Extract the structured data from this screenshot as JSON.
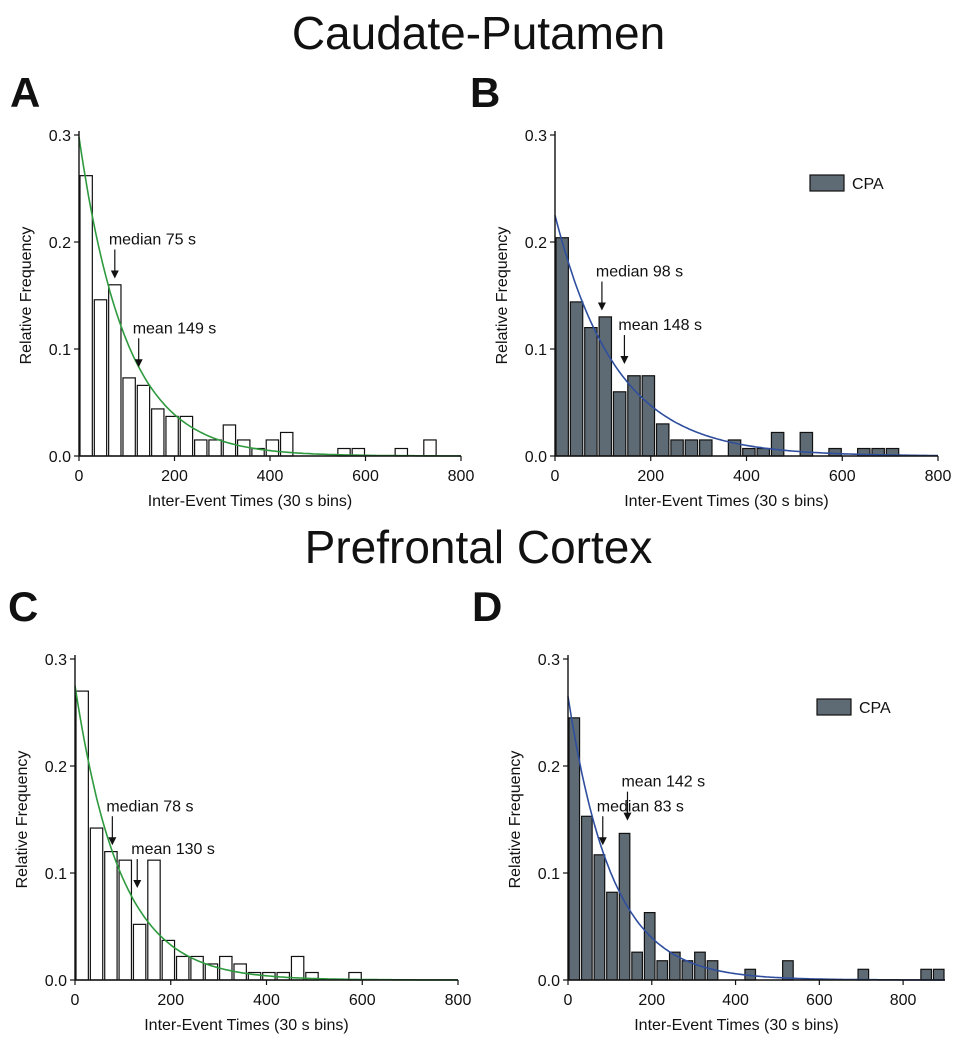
{
  "titles": {
    "top": "Caudate-Putamen",
    "bottom": "Prefrontal Cortex"
  },
  "colors": {
    "bar_filled": "#5e6b74",
    "bar_open": "#ffffff",
    "bar_stroke": "#111111",
    "fit_green": "#2e9a3e",
    "fit_blue": "#2f4f9e"
  },
  "chart_data": [
    {
      "panel": "A",
      "type": "bar",
      "bin_width": 30,
      "x": [
        15,
        45,
        75,
        105,
        135,
        165,
        195,
        225,
        255,
        285,
        315,
        345,
        375,
        405,
        435,
        465,
        495,
        525,
        555,
        585,
        615,
        645,
        675,
        705,
        735
      ],
      "values": [
        0.262,
        0.146,
        0.16,
        0.073,
        0.066,
        0.044,
        0.037,
        0.037,
        0.015,
        0.015,
        0.029,
        0.015,
        0.007,
        0.015,
        0.022,
        0,
        0,
        0,
        0.007,
        0.007,
        0,
        0,
        0.007,
        0,
        0.015
      ],
      "fill": "open",
      "fit": {
        "type": "exponential",
        "y0": 0.298,
        "tau": 98,
        "color": "green"
      },
      "xlabel": "Inter-Event Times (30 s bins)",
      "ylabel": "Relative Frequency",
      "xlim": [
        0,
        800
      ],
      "ylim": [
        0,
        0.3
      ],
      "xticks": [
        0,
        200,
        400,
        600,
        800
      ],
      "yticks": [
        0.0,
        0.1,
        0.2,
        0.3
      ],
      "xtick_labels": [
        "0",
        "200",
        "400",
        "600",
        "800"
      ],
      "ytick_labels": [
        "0.0",
        "0.1",
        "0.2",
        "0.3"
      ],
      "annotations": [
        {
          "text": "median 75 s",
          "x": 75,
          "y": 0.165
        },
        {
          "text": "mean 149 s",
          "x": 125,
          "y": 0.082
        }
      ],
      "legend": null
    },
    {
      "panel": "B",
      "type": "bar",
      "bin_width": 30,
      "x": [
        15,
        45,
        75,
        105,
        135,
        165,
        195,
        225,
        255,
        285,
        315,
        345,
        375,
        405,
        435,
        465,
        495,
        525,
        555,
        585,
        615,
        645,
        675,
        705
      ],
      "values": [
        0.204,
        0.144,
        0.12,
        0.13,
        0.06,
        0.075,
        0.075,
        0.03,
        0.015,
        0.015,
        0.015,
        0,
        0.015,
        0.007,
        0.007,
        0.022,
        0,
        0.022,
        0,
        0.007,
        0,
        0.007,
        0.007,
        0.007
      ],
      "fill": "filled",
      "fit": {
        "type": "exponential",
        "y0": 0.225,
        "tau": 128,
        "color": "blue"
      },
      "xlabel": "Inter-Event Times (30 s bins)",
      "ylabel": "Relative Frequency",
      "xlim": [
        0,
        800
      ],
      "ylim": [
        0,
        0.3
      ],
      "xticks": [
        0,
        200,
        400,
        600,
        800
      ],
      "yticks": [
        0.0,
        0.1,
        0.2,
        0.3
      ],
      "xtick_labels": [
        "0",
        "200",
        "400",
        "600",
        "800"
      ],
      "ytick_labels": [
        "0.0",
        "0.1",
        "0.2",
        "0.3"
      ],
      "annotations": [
        {
          "text": "median 98 s",
          "x": 98,
          "y": 0.135
        },
        {
          "text": "mean 148 s",
          "x": 145,
          "y": 0.085
        }
      ],
      "legend": {
        "label": "CPA",
        "position": "top-right"
      }
    },
    {
      "panel": "C",
      "type": "bar",
      "bin_width": 30,
      "x": [
        15,
        45,
        75,
        105,
        135,
        165,
        195,
        225,
        255,
        285,
        315,
        345,
        375,
        405,
        435,
        465,
        495,
        525,
        555,
        585
      ],
      "values": [
        0.27,
        0.142,
        0.12,
        0.112,
        0.052,
        0.112,
        0.037,
        0.022,
        0.022,
        0.015,
        0.022,
        0.015,
        0.007,
        0.007,
        0.007,
        0.022,
        0.007,
        0,
        0,
        0.007
      ],
      "fill": "open",
      "fit": {
        "type": "exponential",
        "y0": 0.275,
        "tau": 94,
        "color": "green"
      },
      "xlabel": "Inter-Event Times (30 s bins)",
      "ylabel": "Relative Frequency",
      "xlim": [
        0,
        800
      ],
      "ylim": [
        0,
        0.3
      ],
      "xticks": [
        0,
        200,
        400,
        600,
        800
      ],
      "yticks": [
        0.0,
        0.1,
        0.2,
        0.3
      ],
      "xtick_labels": [
        "0",
        "200",
        "400",
        "600",
        "800"
      ],
      "ytick_labels": [
        "0.0",
        "0.1",
        "0.2",
        "0.3"
      ],
      "annotations": [
        {
          "text": "median 78 s",
          "x": 78,
          "y": 0.125
        },
        {
          "text": "mean 130 s",
          "x": 130,
          "y": 0.085
        }
      ],
      "legend": null
    },
    {
      "panel": "D",
      "type": "bar",
      "bin_width": 30,
      "x": [
        15,
        45,
        75,
        105,
        135,
        165,
        195,
        225,
        255,
        285,
        315,
        345,
        375,
        405,
        435,
        465,
        495,
        525,
        555,
        585,
        615,
        645,
        675,
        705,
        735,
        765,
        795,
        825,
        855,
        885
      ],
      "values": [
        0.245,
        0.153,
        0.117,
        0.082,
        0.137,
        0.026,
        0.063,
        0.018,
        0.026,
        0.018,
        0.026,
        0.018,
        0,
        0,
        0.01,
        0,
        0,
        0.018,
        0,
        0,
        0,
        0,
        0,
        0.01,
        0,
        0,
        0,
        0,
        0.01,
        0.01
      ],
      "fill": "filled",
      "fit": {
        "type": "exponential",
        "y0": 0.265,
        "tau": 105,
        "color": "blue"
      },
      "xlabel": "Inter-Event Times (30 s bins)",
      "ylabel": "Relative Frequency",
      "xlim": [
        0,
        900
      ],
      "ylim": [
        0,
        0.3
      ],
      "xticks": [
        0,
        200,
        400,
        600,
        800
      ],
      "yticks": [
        0.0,
        0.1,
        0.2,
        0.3
      ],
      "xtick_labels": [
        "0",
        "200",
        "400",
        "600",
        "800"
      ],
      "ytick_labels": [
        "0.0",
        "0.1",
        "0.2",
        "0.3"
      ],
      "annotations": [
        {
          "text": "median 83 s",
          "x": 83,
          "y": 0.125
        },
        {
          "text": "mean 142 s",
          "x": 142,
          "y": 0.148
        }
      ],
      "legend": {
        "label": "CPA",
        "position": "top-right"
      }
    }
  ]
}
